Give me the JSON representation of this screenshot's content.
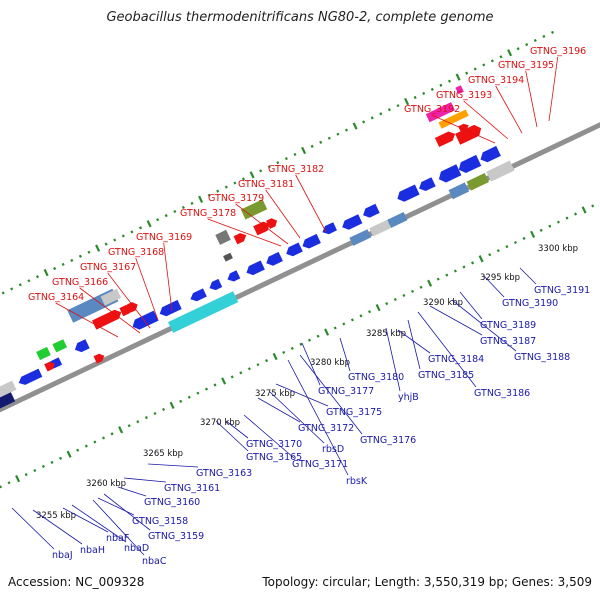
{
  "title": "Geobacillus thermodenitrificans NG80-2, complete genome",
  "footer": {
    "accession": "Accession: NC_009328",
    "summary": "Topology: circular; Length: 3,550,319 bp; Genes: 3,509"
  },
  "scale_labels": [
    "3255 kbp",
    "3260 kbp",
    "3265 kbp",
    "3270 kbp",
    "3275 kbp",
    "3280 kbp",
    "3285 kbp",
    "3290 kbp",
    "3295 kbp",
    "3300 kbp"
  ],
  "forward_genes": [
    "GTNG_3164",
    "GTNG_3166",
    "GTNG_3167",
    "GTNG_3168",
    "GTNG_3169",
    "GTNG_3178",
    "GTNG_3179",
    "GTNG_3181",
    "GTNG_3182",
    "GTNG_3192",
    "GTNG_3193",
    "GTNG_3194",
    "GTNG_3195",
    "GTNG_3196"
  ],
  "reverse_genes": [
    "nbaJ",
    "nbaH",
    "nbaF",
    "nbaD",
    "nbaC",
    "GTNG_3158",
    "GTNG_3159",
    "GTNG_3160",
    "GTNG_3161",
    "GTNG_3163",
    "GTNG_3165",
    "GTNG_3170",
    "GTNG_3171",
    "GTNG_3172",
    "rbsD",
    "rbsK",
    "GTNG_3175",
    "GTNG_3176",
    "GTNG_3177",
    "GTNG_3180",
    "yhjB",
    "GTNG_3184",
    "GTNG_3185",
    "GTNG_3186",
    "GTNG_3187",
    "GTNG_3188",
    "GTNG_3189",
    "GTNG_3190",
    "GTNG_3191"
  ],
  "colors": {
    "forward_label": "#dd1111",
    "reverse_label": "#1a1aaa",
    "backbone": "#909090",
    "tick": "#2a8a2a",
    "reverse_gene": "#1a2ee0",
    "forward_gene": "#ee1111",
    "highlight_cyan": "#33d0d8",
    "highlight_steel": "#5a88c0",
    "highlight_navy": "#141a70",
    "highlight_olive": "#7a9a30",
    "highlight_pink": "#ee22aa",
    "highlight_orange": "#ffa000",
    "highlight_green": "#22cc33",
    "grey": "#c8c8c8"
  }
}
